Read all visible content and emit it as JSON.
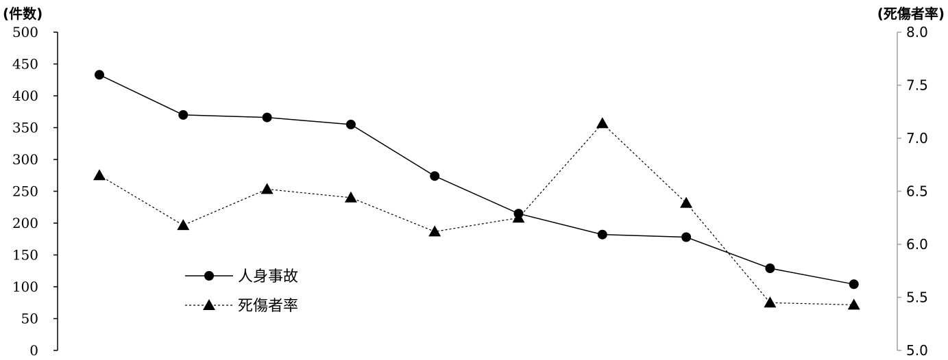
{
  "chart_data": {
    "type": "line",
    "left_axis": {
      "unit_label": "(件数)",
      "ylim": [
        0,
        500
      ],
      "ticks": [
        "500",
        "450",
        "400",
        "350",
        "300",
        "250",
        "200",
        "150",
        "100",
        "50",
        "0"
      ]
    },
    "right_axis": {
      "unit_label": "(死傷者率)",
      "ylim": [
        5.0,
        8.0
      ],
      "ticks": [
        "8.0",
        "7.5",
        "7.0",
        "6.5",
        "6.0",
        "5.5",
        "5.0"
      ]
    },
    "series": [
      {
        "name": "人身事故",
        "axis": "left",
        "marker": "circle",
        "line": "solid",
        "values": [
          433,
          370,
          366,
          355,
          274,
          215,
          182,
          178,
          129,
          104
        ]
      },
      {
        "name": "死傷者率",
        "axis": "right",
        "marker": "triangle",
        "line": "dashed",
        "values": [
          6.65,
          6.18,
          6.52,
          6.44,
          6.12,
          6.25,
          7.14,
          6.39,
          5.45,
          5.43
        ]
      }
    ],
    "legend_position": "lower-left",
    "grid": false,
    "colors": {
      "line": "#000000",
      "axis_right": "#a0a0a0"
    }
  }
}
